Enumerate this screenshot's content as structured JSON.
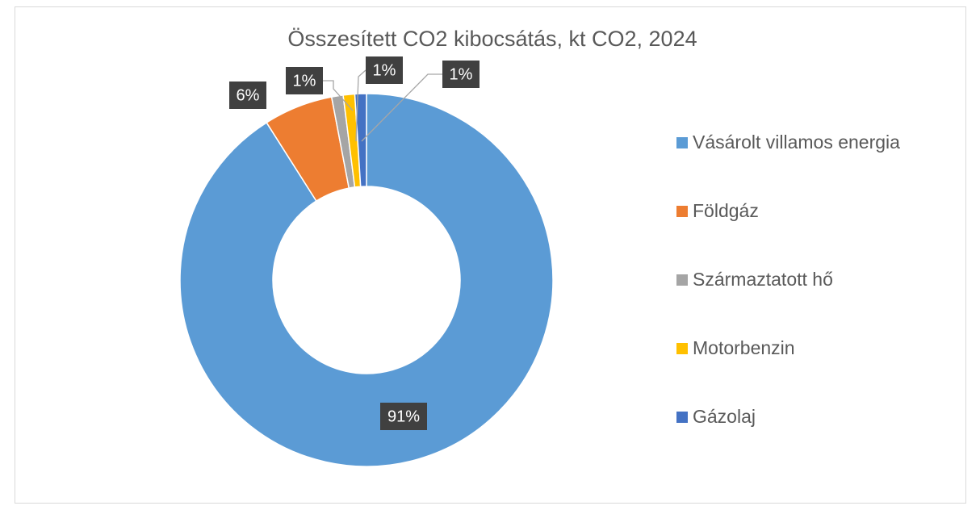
{
  "chart_data": {
    "type": "donut",
    "title": "Összesített CO2 kibocsátás, kt CO2, 2024",
    "categories": [
      "Vásárolt villamos energia",
      "Földgáz",
      "Származtatott hő",
      "Motorbenzin",
      "Gázolaj"
    ],
    "values": [
      91,
      6,
      1,
      1,
      1
    ],
    "value_labels": [
      "91%",
      "6%",
      "1%",
      "1%",
      "1%"
    ],
    "colors": [
      "#5b9bd5",
      "#ed7d31",
      "#a5a5a5",
      "#ffc000",
      "#4472c4"
    ],
    "legend": "right"
  }
}
